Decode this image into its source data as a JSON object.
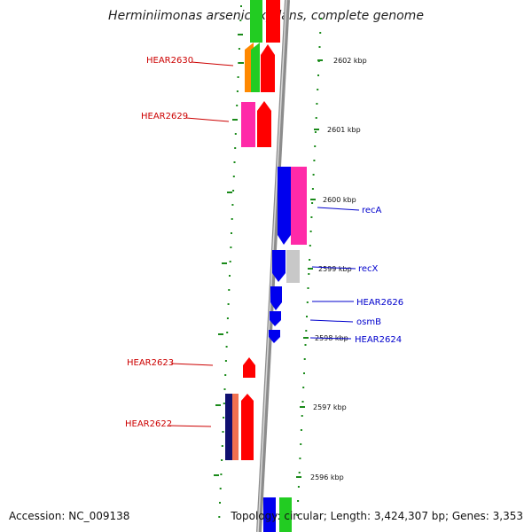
{
  "title": "Herminiimonas arsenicoxydans, complete genome",
  "accession": "Accession: NC_009138",
  "topology": "Topology: circular; Length: 3,424,307 bp; Genes: 3,353",
  "colors": {
    "backbone": "#8c8c8c",
    "tick": "#1a8a1a",
    "reverse_label": "#cc0000",
    "forward_label": "#0000cc"
  },
  "scale": {
    "unit": "kbp",
    "ticks": [
      {
        "label": "2602 kbp",
        "kbp": 2602
      },
      {
        "label": "2601 kbp",
        "kbp": 2601
      },
      {
        "label": "2600 kbp",
        "kbp": 2600
      },
      {
        "label": "2599 kbp",
        "kbp": 2599
      },
      {
        "label": "2598 kbp",
        "kbp": 2598
      },
      {
        "label": "2597 kbp",
        "kbp": 2597
      },
      {
        "label": "2596 kbp",
        "kbp": 2596
      }
    ]
  },
  "genes": [
    {
      "label": "HEAR2630",
      "strand": "reverse"
    },
    {
      "label": "HEAR2629",
      "strand": "reverse"
    },
    {
      "label": "HEAR2623",
      "strand": "reverse"
    },
    {
      "label": "HEAR2622",
      "strand": "reverse"
    },
    {
      "label": "recA",
      "strand": "forward"
    },
    {
      "label": "recX",
      "strand": "forward"
    },
    {
      "label": "HEAR2626",
      "strand": "forward"
    },
    {
      "label": "osmB",
      "strand": "forward"
    },
    {
      "label": "HEAR2624",
      "strand": "forward"
    }
  ]
}
